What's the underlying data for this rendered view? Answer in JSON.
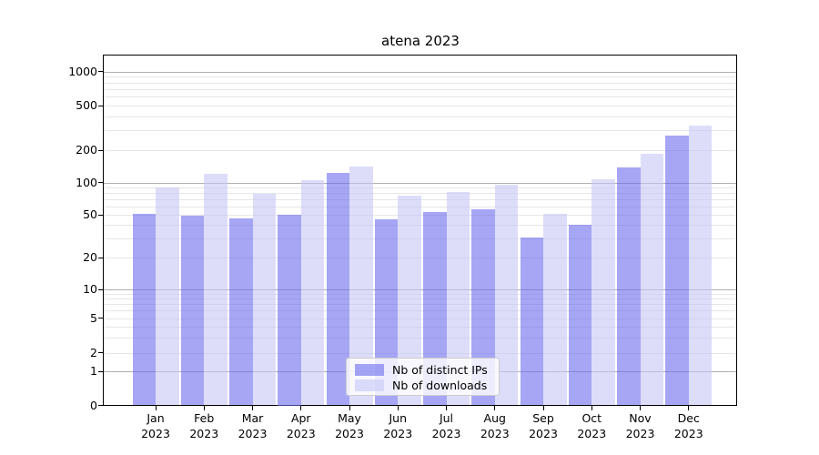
{
  "title": "atena 2023",
  "colors": {
    "ips_bar": "#6a6aee99",
    "downloads_bar": "#c7c7f799",
    "grid_major": "#b0b0b0",
    "grid_minor": "#e7e7e7",
    "axis": "#000000",
    "legend_border": "#cccccc"
  },
  "y_axis": {
    "tick_values": [
      0,
      1,
      2,
      5,
      10,
      20,
      50,
      100,
      200,
      500,
      1000
    ],
    "tick_labels": [
      "0",
      "1",
      "2",
      "5",
      "10",
      "20",
      "50",
      "100",
      "200",
      "500",
      "1000"
    ]
  },
  "x_axis": {
    "months": [
      "Jan",
      "Feb",
      "Mar",
      "Apr",
      "May",
      "Jun",
      "Jul",
      "Aug",
      "Sep",
      "Oct",
      "Nov",
      "Dec"
    ],
    "year": "2023"
  },
  "legend": {
    "items": [
      {
        "label": "Nb of distinct IPs",
        "color_key": "ips_bar"
      },
      {
        "label": "Nb of downloads",
        "color_key": "downloads_bar"
      }
    ]
  },
  "chart_data": {
    "type": "bar",
    "title": "atena 2023",
    "categories": [
      "Jan 2023",
      "Feb 2023",
      "Mar 2023",
      "Apr 2023",
      "May 2023",
      "Jun 2023",
      "Jul 2023",
      "Aug 2023",
      "Sep 2023",
      "Oct 2023",
      "Nov 2023",
      "Dec 2023"
    ],
    "series": [
      {
        "name": "Nb of distinct IPs",
        "values": [
          51,
          49,
          46,
          50,
          123,
          45,
          53,
          56,
          31,
          40,
          137,
          268
        ]
      },
      {
        "name": "Nb of downloads",
        "values": [
          90,
          120,
          79,
          104,
          141,
          75,
          82,
          96,
          51,
          107,
          185,
          333
        ]
      }
    ],
    "xlabel": "",
    "ylabel": "",
    "yscale": "symlog",
    "yticks": [
      0,
      1,
      2,
      5,
      10,
      20,
      50,
      100,
      200,
      500,
      1000
    ],
    "ylim_labeled": [
      0,
      1000
    ],
    "grid": true,
    "legend_position": "lower center"
  }
}
